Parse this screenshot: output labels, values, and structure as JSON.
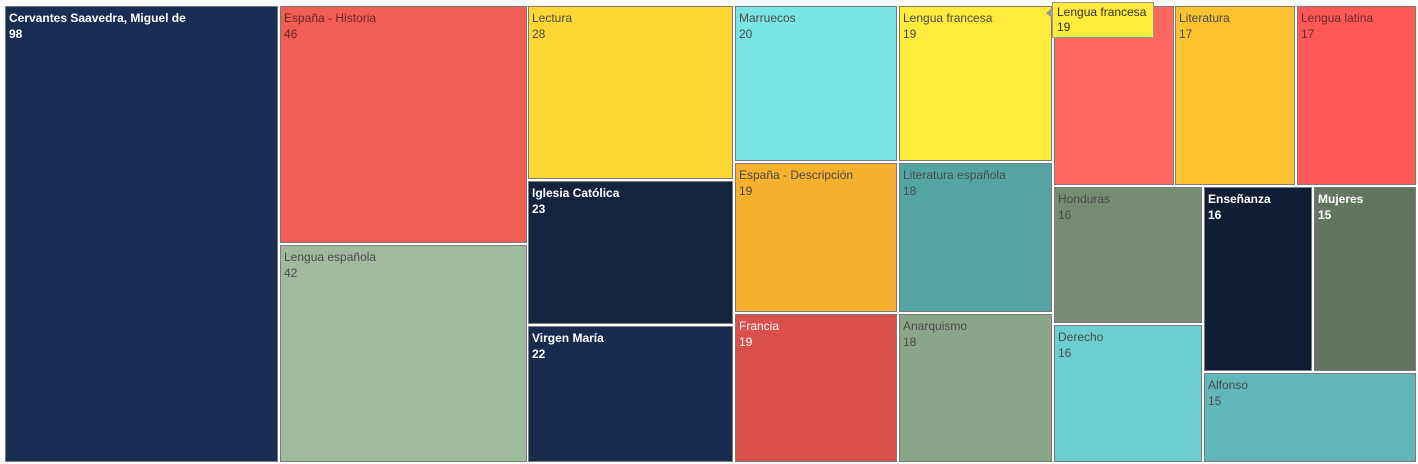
{
  "chart_data": {
    "type": "treemap",
    "items": [
      {
        "label": "Cervantes Saavedra, Miguel de",
        "value": 98,
        "color": "#172d51"
      },
      {
        "label": "España - Historia",
        "value": 46,
        "color": "#f15c53"
      },
      {
        "label": "Lengua española",
        "value": 42,
        "color": "#9fbb9c"
      },
      {
        "label": "Lectura",
        "value": 28,
        "color": "#fdd835"
      },
      {
        "label": "Iglesia Católica",
        "value": 23,
        "color": "#13243f"
      },
      {
        "label": "Virgen María",
        "value": 22,
        "color": "#172b4d"
      },
      {
        "label": "Marruecos",
        "value": 20,
        "color": "#7ae5e5"
      },
      {
        "label": "España - Descripción",
        "value": 19,
        "color": "#f5b02d"
      },
      {
        "label": "Francia",
        "value": 19,
        "color": "#da4f4a"
      },
      {
        "label": "Lengua francesa",
        "value": 19,
        "color": "#ffeb3b"
      },
      {
        "label": "Literatura española",
        "value": 18,
        "color": "#55a4a4"
      },
      {
        "label": "Anarquismo",
        "value": 18,
        "color": "#8aa688"
      },
      {
        "label": "",
        "value": 17,
        "color": "#ff6761"
      },
      {
        "label": "Literatura",
        "value": 17,
        "color": "#fcc22f"
      },
      {
        "label": "Lengua latina",
        "value": 17,
        "color": "#fe5957"
      },
      {
        "label": "Honduras",
        "value": 16,
        "color": "#788c75"
      },
      {
        "label": "Derecho",
        "value": 16,
        "color": "#6ccfd1"
      },
      {
        "label": "Enseñanza",
        "value": 16,
        "color": "#101d35"
      },
      {
        "label": "Mujeres",
        "value": 15,
        "color": "#637461"
      },
      {
        "label": "Alfonso",
        "value": 15,
        "color": "#62b7ba"
      }
    ]
  },
  "tooltip": {
    "label": "Lengua francesa",
    "value": "19"
  }
}
